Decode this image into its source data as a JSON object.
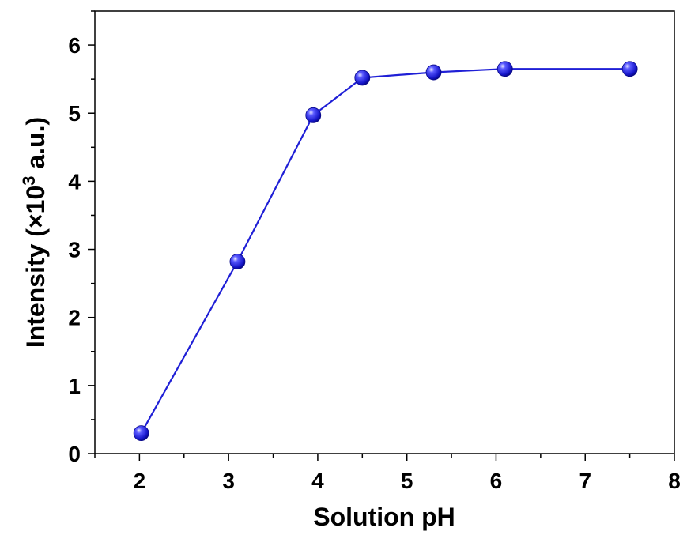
{
  "chart_data": {
    "type": "line",
    "title": "",
    "xlabel": "Solution pH",
    "ylabel": {
      "prefix": "Intensity (×10",
      "superscript": "3",
      "suffix": " a.u.)"
    },
    "xlim": [
      1.5,
      8
    ],
    "ylim": [
      0,
      6.5
    ],
    "xticks": [
      2,
      3,
      4,
      5,
      6,
      7,
      8
    ],
    "yticks": [
      0,
      1,
      2,
      3,
      4,
      5,
      6
    ],
    "grid": false,
    "legend": "none",
    "series": [
      {
        "color": "#1f1fd6",
        "x": [
          2.02,
          3.1,
          3.95,
          4.5,
          5.3,
          6.1,
          7.5
        ],
        "y": [
          0.3,
          2.82,
          4.97,
          5.52,
          5.6,
          5.65,
          5.65
        ]
      }
    ]
  }
}
